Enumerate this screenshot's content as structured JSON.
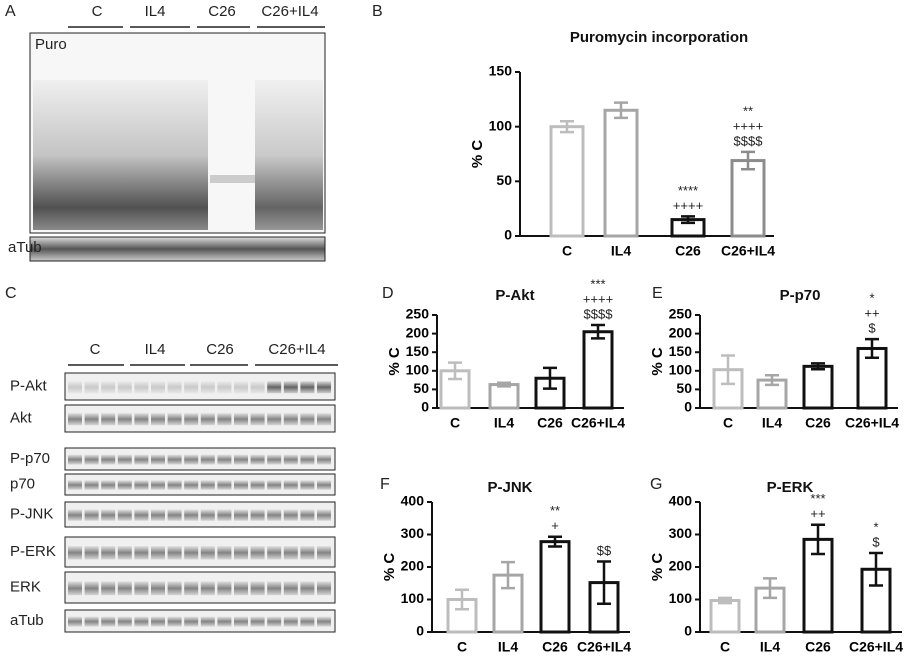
{
  "panels": [
    "A",
    "B",
    "C",
    "D",
    "E",
    "F",
    "G"
  ],
  "blot_a": {
    "groups": [
      "C",
      "IL4",
      "C26",
      "C26+IL4"
    ],
    "rows": [
      "Puro",
      "aTub"
    ]
  },
  "blot_c": {
    "groups": [
      "C",
      "IL4",
      "C26",
      "C26+IL4"
    ],
    "rows": [
      "P-Akt",
      "Akt",
      "P-p70",
      "p70",
      "P-JNK",
      "P-ERK",
      "ERK",
      "aTub"
    ]
  },
  "chart_data": [
    {
      "type": "bar",
      "title": "Puromycin incorporation",
      "y_label": "% C",
      "categories": [
        "C",
        "IL4",
        "C26",
        "C26+IL4"
      ],
      "values": [
        100,
        115,
        15,
        69
      ],
      "errors": [
        5,
        7,
        3,
        8
      ],
      "colors": [
        "#bdbdbd",
        "#a6a6a6",
        "#111111",
        "#8c8c8c"
      ],
      "annotations": [
        null,
        null,
        [
          "****",
          "++++"
        ],
        [
          "**",
          "++++",
          "$$$$"
        ]
      ],
      "ylim": [
        0,
        150
      ],
      "yticks": [
        0,
        50,
        100,
        150
      ]
    },
    {
      "type": "bar",
      "title": "P-Akt",
      "y_label": "% C",
      "categories": [
        "C",
        "IL4",
        "C26",
        "C26+IL4"
      ],
      "values": [
        100,
        63,
        80,
        205
      ],
      "errors": [
        22,
        5,
        28,
        18
      ],
      "colors": [
        "#bdbdbd",
        "#a6a6a6",
        "#111111",
        "#111111"
      ],
      "annotations": [
        null,
        null,
        null,
        [
          "***",
          "++++",
          "$$$$"
        ]
      ],
      "ylim": [
        0,
        250
      ],
      "yticks": [
        0,
        50,
        100,
        150,
        200,
        250
      ]
    },
    {
      "type": "bar",
      "title": "P-p70",
      "y_label": "% C",
      "categories": [
        "C",
        "IL4",
        "C26",
        "C26+IL4"
      ],
      "values": [
        103,
        75,
        112,
        160
      ],
      "errors": [
        38,
        13,
        8,
        25
      ],
      "colors": [
        "#bdbdbd",
        "#a6a6a6",
        "#111111",
        "#111111"
      ],
      "annotations": [
        null,
        null,
        null,
        [
          "*",
          "++",
          "$"
        ]
      ],
      "ylim": [
        0,
        250
      ],
      "yticks": [
        0,
        50,
        100,
        150,
        200,
        250
      ]
    },
    {
      "type": "bar",
      "title": "P-JNK",
      "y_label": "% C",
      "categories": [
        "C",
        "IL4",
        "C26",
        "C26+IL4"
      ],
      "values": [
        100,
        175,
        278,
        152
      ],
      "errors": [
        30,
        40,
        15,
        65
      ],
      "colors": [
        "#bdbdbd",
        "#a6a6a6",
        "#111111",
        "#111111"
      ],
      "annotations": [
        null,
        null,
        [
          "**",
          "+"
        ],
        [
          "$$"
        ]
      ],
      "ylim": [
        0,
        400
      ],
      "yticks": [
        0,
        100,
        200,
        300,
        400
      ]
    },
    {
      "type": "bar",
      "title": "P-ERK",
      "y_label": "% C",
      "categories": [
        "C",
        "IL4",
        "C26",
        "C26+IL4"
      ],
      "values": [
        97,
        135,
        285,
        193
      ],
      "errors": [
        8,
        30,
        45,
        50
      ],
      "colors": [
        "#bdbdbd",
        "#a6a6a6",
        "#111111",
        "#111111"
      ],
      "annotations": [
        null,
        null,
        [
          "***",
          "++"
        ],
        [
          "*",
          "$"
        ]
      ],
      "ylim": [
        0,
        400
      ],
      "yticks": [
        0,
        100,
        200,
        300,
        400
      ]
    }
  ]
}
